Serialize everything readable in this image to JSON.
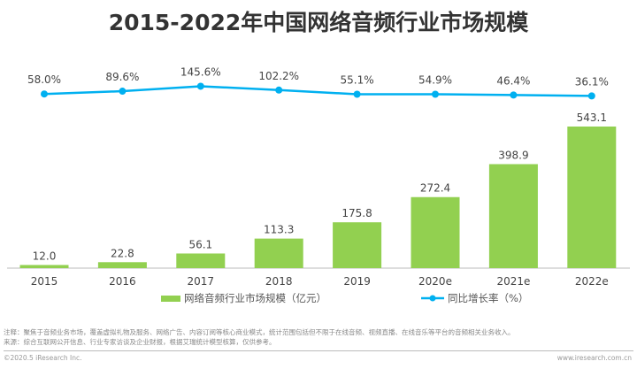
{
  "chart_data": {
    "type": "bar",
    "title": "2015-2022年中国网络音频行业市场规模",
    "categories": [
      "2015",
      "2016",
      "2017",
      "2018",
      "2019",
      "2020e",
      "2021e",
      "2022e"
    ],
    "series": [
      {
        "name": "网络音频行业市场规模（亿元）",
        "type": "bar",
        "color": "#92d050",
        "values": [
          12.0,
          22.8,
          56.1,
          113.3,
          175.8,
          272.4,
          398.9,
          543.1
        ],
        "labels": [
          "12.0",
          "22.8",
          "56.1",
          "113.3",
          "175.8",
          "272.4",
          "398.9",
          "543.1"
        ]
      },
      {
        "name": "同比增长率（%）",
        "type": "line",
        "color": "#00b0f0",
        "values": [
          58.0,
          89.6,
          145.6,
          102.2,
          55.1,
          54.9,
          46.4,
          36.1
        ],
        "labels": [
          "58.0%",
          "89.6%",
          "145.6%",
          "102.2%",
          "55.1%",
          "54.9%",
          "46.4%",
          "36.1%"
        ]
      }
    ],
    "legend": "bottom",
    "grid": false
  },
  "notes": [
    "注释：聚焦于音频业务市场，覆盖虚拟礼物及服务、网络广告、内容订阅等核心商业模式，统计范围包括但不限于在线音频、视频直播、在线音乐等平台的音频相关业务收入。",
    "来源：综合互联网公开信息、行业专家访谈及企业财报，根据艾瑞统计模型核算，仅供参考。"
  ],
  "footer": {
    "copyright": "©2020.5 iResearch Inc.",
    "website": "www.iresearch.com.cn"
  }
}
